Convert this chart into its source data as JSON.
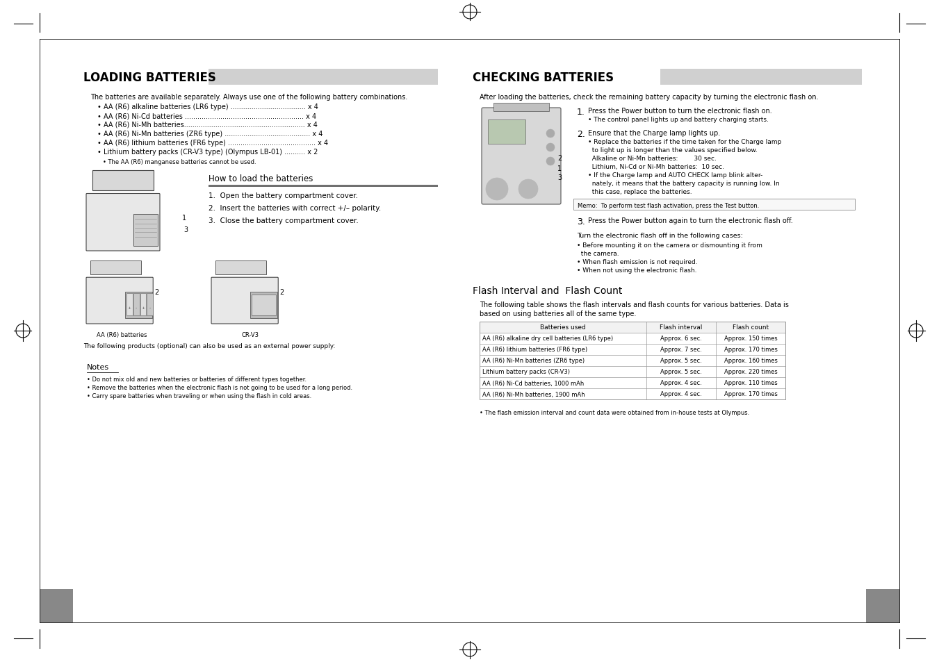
{
  "bg_color": "#ffffff",
  "left_section": {
    "title": "LOADING BATTERIES",
    "title_bar_color": "#d0d0d0",
    "intro": "The batteries are available separately. Always use one of the following battery combinations.",
    "bullet_items": [
      "• AA (R6) alkaline batteries (LR6 type) .................................... x 4",
      "• AA (R6) Ni-Cd batteries ......................................................... x 4",
      "• AA (R6) Ni-Mh batteries.......................................................... x 4",
      "• AA (R6) Ni-Mn batteries (ZR6 type) ......................................... x 4",
      "• AA (R6) lithium batteries (FR6 type) .......................................... x 4",
      "• Lithium battery packs (CR-V3 type) (Olympus LB-01) .......... x 2"
    ],
    "sub_note": "• The AA (R6) manganese batteries cannot be used.",
    "how_to_title": "How to load the batteries",
    "how_to_bar_color": "#707070",
    "step1": "1.  Open the battery compartment cover.",
    "step2": "2.  Insert the batteries with correct +/– polarity.",
    "step3": "3.  Close the battery compartment cover.",
    "label_aa": "AA (R6) batteries",
    "label_crv3": "CR-V3",
    "optional_note": "The following products (optional) can also be used as an external power supply:",
    "notes_title": "Notes",
    "notes": [
      "• Do not mix old and new batteries or batteries of different types together.",
      "• Remove the batteries when the electronic flash is not going to be used for a long period.",
      "• Carry spare batteries when traveling or when using the flash in cold areas."
    ]
  },
  "right_section": {
    "title": "CHECKING BATTERIES",
    "title_bar_color": "#d0d0d0",
    "intro": "After loading the batteries, check the remaining battery capacity by turning the electronic flash on.",
    "step1_text": "Press the Power button to turn the electronic flash on.",
    "step1_sub": "• The control panel lights up and battery charging starts.",
    "step2_text": "Ensure that the Charge lamp lights up.",
    "step2_sub1": "• Replace the batteries if the time taken for the Charge lamp",
    "step2_sub1b": "  to light up is longer than the values specified below.",
    "step2_alkaline": "  Alkaline or Ni-Mn batteries:        30 sec.",
    "step2_lithium": "  Lithium, Ni-Cd or Ni-Mh batteries:  10 sec.",
    "step2_sub2": "• If the Charge lamp and AUTO CHECK lamp blink alter-",
    "step2_sub2b": "  nately, it means that the battery capacity is running low. In",
    "step2_sub2c": "  this case, replace the batteries.",
    "memo": "Memo:  To perform test flash activation, press the Test button.",
    "step3_text": "Press the Power button again to turn the electronic flash off.",
    "turn_off_title": "Turn the electronic flash off in the following cases:",
    "turn_off_items": [
      "• Before mounting it on the camera or dismounting it from",
      "  the camera.",
      "• When flash emission is not required.",
      "• When not using the electronic flash."
    ],
    "flash_section_title": "Flash Interval and  Flash Count",
    "flash_intro1": "The following table shows the flash intervals and flash counts for various batteries. Data is",
    "flash_intro2": "based on using batteries all of the same type.",
    "table_headers": [
      "Batteries used",
      "Flash interval",
      "Flash count"
    ],
    "table_rows": [
      [
        "AA (R6) alkaline dry cell batteries (LR6 type)",
        "Approx. 6 sec.",
        "Approx. 150 times"
      ],
      [
        "AA (R6) lithium batteries (FR6 type)",
        "Approx. 7 sec.",
        "Approx. 170 times"
      ],
      [
        "AA (R6) Ni-Mn batteries (ZR6 type)",
        "Approx. 5 sec.",
        "Approx. 160 times"
      ],
      [
        "Lithium battery packs (CR-V3)",
        "Approx. 5 sec.",
        "Approx. 220 times"
      ],
      [
        "AA (R6) Ni-Cd batteries, 1000 mAh",
        "Approx. 4 sec.",
        "Approx. 110 times"
      ],
      [
        "AA (R6) Ni-Mh batteries, 1900 mAh",
        "Approx. 4 sec.",
        "Approx. 170 times"
      ]
    ],
    "table_note": "• The flash emission interval and count data were obtained from in-house tests at Olympus."
  }
}
